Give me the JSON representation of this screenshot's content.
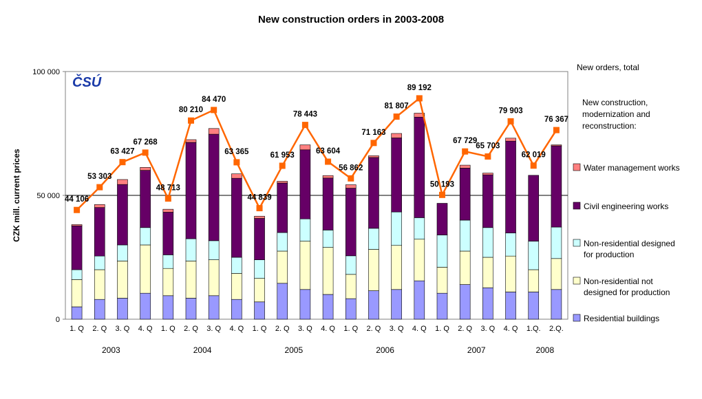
{
  "chart_data": {
    "type": "bar",
    "title": "New construction orders in 2003-2008",
    "ylabel": "CZK mill. current prices",
    "ylim": [
      0,
      100000
    ],
    "yticks": [
      "0",
      "50 000",
      "100 000"
    ],
    "ytick_values": [
      0,
      50000,
      100000
    ],
    "categories": [
      "1. Q",
      "2. Q",
      "3. Q",
      "4. Q",
      "1. Q",
      "2. Q",
      "3. Q",
      "4. Q",
      "1. Q",
      "2. Q",
      "3. Q",
      "4. Q",
      "1. Q",
      "2. Q",
      "3. Q",
      "4. Q",
      "1. Q",
      "2. Q",
      "3. Q",
      "4. Q",
      "1.Q.",
      "2.Q."
    ],
    "years": [
      {
        "label": "2003",
        "start": 0,
        "end": 3
      },
      {
        "label": "2004",
        "start": 4,
        "end": 7
      },
      {
        "label": "2005",
        "start": 8,
        "end": 11
      },
      {
        "label": "2006",
        "start": 12,
        "end": 15
      },
      {
        "label": "2007",
        "start": 16,
        "end": 19
      },
      {
        "label": "2008",
        "start": 20,
        "end": 21
      }
    ],
    "series": [
      {
        "name": "Residential buildings",
        "color": "#9999ff",
        "values": [
          5000,
          8000,
          8500,
          10500,
          9500,
          8500,
          9500,
          8000,
          7000,
          14500,
          12000,
          10000,
          8300,
          11500,
          12000,
          15500,
          10500,
          14000,
          12700,
          11000,
          11000,
          12000
        ]
      },
      {
        "name": "Non-residential not designed for production",
        "color": "#ffffcc",
        "values": [
          11000,
          12000,
          15000,
          19500,
          11000,
          15000,
          14500,
          10500,
          9500,
          13000,
          19500,
          19000,
          9800,
          16700,
          17800,
          16800,
          10500,
          13500,
          12300,
          14500,
          9000,
          12500
        ]
      },
      {
        "name": "Non-residential designed for production",
        "color": "#ccffff",
        "values": [
          4000,
          5500,
          6500,
          7000,
          5500,
          9000,
          7700,
          6500,
          7500,
          7500,
          9000,
          7000,
          7500,
          8500,
          13500,
          8700,
          13000,
          12500,
          12000,
          9300,
          11500,
          12700
        ]
      },
      {
        "name": "Civil engineering works",
        "color": "#660066",
        "values": [
          17700,
          19600,
          24400,
          23100,
          17200,
          38900,
          43000,
          31900,
          16700,
          20000,
          27900,
          21000,
          27300,
          28600,
          29900,
          40600,
          12800,
          21000,
          21300,
          37100,
          26600,
          32800
        ]
      },
      {
        "name": "Water management works",
        "color": "#ff8080",
        "values": [
          500,
          1200,
          2000,
          1200,
          1200,
          1100,
          2300,
          1800,
          900,
          700,
          2000,
          1000,
          1400,
          700,
          1800,
          1600,
          0,
          1200,
          700,
          1200,
          0,
          400
        ]
      }
    ],
    "line": {
      "name": "New orders, total",
      "color": "#ff6600",
      "values": [
        44106,
        53303,
        63427,
        67268,
        48713,
        80210,
        84470,
        63365,
        44839,
        61953,
        78443,
        63604,
        56862,
        71163,
        81807,
        89192,
        50193,
        67729,
        65703,
        79903,
        62019,
        76367
      ],
      "labels": [
        "44 106",
        "53 303",
        "63 427",
        "67 268",
        "48 713",
        "80 210",
        "84 470",
        "63 365",
        "44 839",
        "61 953",
        "78 443",
        "63 604",
        "56 862",
        "71 163",
        "81 807",
        "89 192",
        "50 193",
        "67 729",
        "65 703",
        "79 903",
        "62 019",
        "76 367"
      ]
    },
    "legend": {
      "header": "New orders, total",
      "subheader_lines": [
        "New construction,",
        "modernization and",
        "reconstruction:"
      ],
      "items": [
        {
          "series": "Water management works",
          "lines": [
            "Water management works"
          ]
        },
        {
          "series": "Civil engineering works",
          "lines": [
            "Civil engineering works"
          ]
        },
        {
          "series": "Non-residential designed for production",
          "lines": [
            "Non-residential designed",
            "for production"
          ]
        },
        {
          "series": "Non-residential not designed for production",
          "lines": [
            "Non-residential not",
            "designed for production"
          ]
        },
        {
          "series": "Residential buildings",
          "lines": [
            "Residential buildings"
          ]
        }
      ]
    },
    "logo": "ČSÚ",
    "logo_color": "#1a3aa8",
    "grid": false,
    "reference_line": 50000
  }
}
